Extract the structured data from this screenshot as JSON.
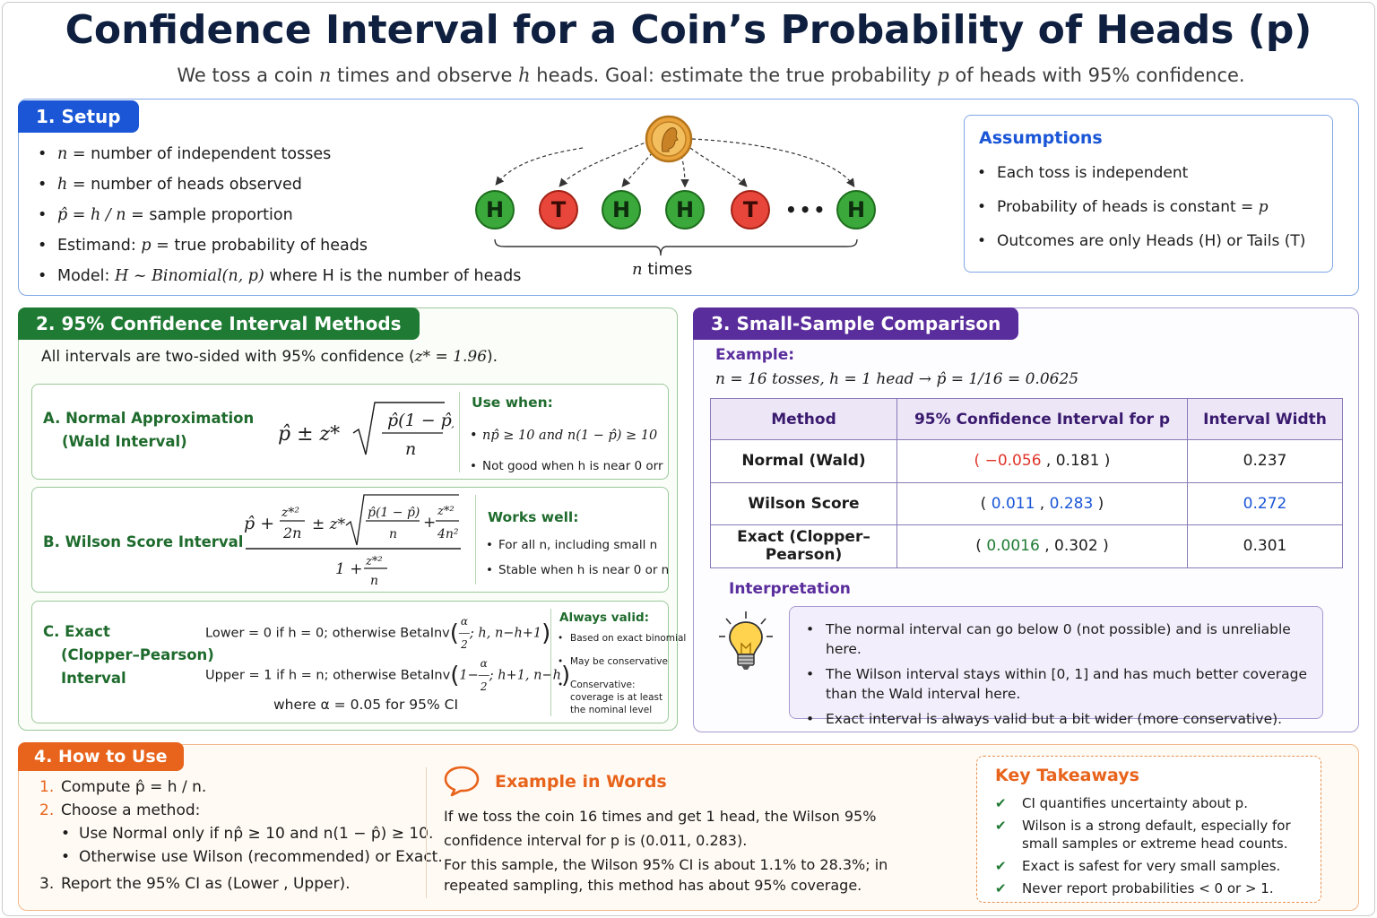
{
  "title": "Confidence Interval for a Coin’s Probability of Heads (p)",
  "subtitle": {
    "a": "We toss a coin ",
    "n": "n",
    "b": " times and observe ",
    "h": "h",
    "c": " heads. Goal: estimate the true probability ",
    "p": "p",
    "d": " of heads with 95% confidence."
  },
  "setup": {
    "tag": "1. Setup",
    "items": [
      {
        "sym": "n",
        "eq": " = ",
        "text": "number of independent tosses"
      },
      {
        "sym": "h",
        "eq": " = ",
        "text": "number of heads observed"
      },
      {
        "sym": "p̂",
        "eq": " = h / n = ",
        "text": "sample proportion"
      },
      {
        "pre": "Estimand:  ",
        "sym": "p",
        "eq": " = ",
        "text": "true probability of heads"
      },
      {
        "pre": "Model:  ",
        "math": "H ~ Binomial(n, p)",
        "text": " where H is the number of heads"
      }
    ],
    "tosses": [
      "H",
      "T",
      "H",
      "H",
      "T",
      "H"
    ],
    "dots": "• • •",
    "n_times": {
      "n": "n",
      "text": " times"
    }
  },
  "assumptions": {
    "title": "Assumptions",
    "items": [
      "Each toss is independent",
      "Probability of heads is constant = ",
      "Outcomes are only Heads (H) or Tails (T)"
    ],
    "p": "p"
  },
  "methods": {
    "tag": "2. 95% Confidence Interval Methods",
    "intro": "All intervals are two-sided with 95% confidence (",
    "intro_z": "z* = 1.96",
    "intro_end": ").",
    "A": {
      "name1": "A. Normal Approximation",
      "name2": "(Wald Interval)",
      "use_head": "Use when:",
      "use": [
        "np̂ ≥ 10 and n(1 − p̂) ≥ 10",
        "Not good when h is near 0 orr"
      ]
    },
    "B": {
      "name": "B. Wilson Score Interval",
      "use_head": "Works well:",
      "use": [
        "For all n, including small n",
        "Stable when h is near 0 or n"
      ]
    },
    "C": {
      "name1": "C. Exact",
      "name2": "(Clopper–Pearson)",
      "name3": "Interval",
      "lower": "Lower = 0 if h = 0; otherwise BetaInv",
      "lower_args": "; h, n−h+1",
      "upper": "Upper = 1 if h = n; otherwise BetaInv",
      "upper_args": "; h+1, n−h",
      "where": "where α = 0.05 for 95% CI",
      "use_head": "Always valid:",
      "use": [
        "Based on exact binomial",
        "May be conservative",
        "Conservative: coverage is at least the nominal level"
      ]
    }
  },
  "comparison": {
    "tag": "3. Small-Sample Comparison",
    "example_label": "Example:",
    "example": "n = 16 tosses,  h = 1 head    →   p̂ = 1/16 = 0.0625",
    "headers": [
      "Method",
      "95% Confidence Interval for p",
      "Interval Width"
    ],
    "rows": [
      {
        "method": "Normal (Wald)",
        "lo": "−0.056",
        "hi": "0.181",
        "width": "0.237"
      },
      {
        "method": "Wilson Score",
        "lo": "0.011",
        "hi": "0.283",
        "width": "0.272"
      },
      {
        "method": "Exact (Clopper–Pearson)",
        "lo": "0.0016",
        "hi": "0.302",
        "width": "0.301"
      }
    ],
    "interp_label": "Interpretation",
    "interp": [
      "The normal interval can go below 0 (not possible) and is unreliable here.",
      "The Wilson interval stays within [0, 1] and has much better coverage than the Wald interval here.",
      "Exact interval is always valid but a bit wider (more conservative)."
    ]
  },
  "howto": {
    "tag": "4. How to Use",
    "steps": [
      {
        "n": "1.",
        "text": "Compute  p̂ = h / n."
      },
      {
        "n": "2.",
        "text": "Choose a method:"
      },
      {
        "n": "3.",
        "text": "Report the 95% CI as (Lower , Upper)."
      }
    ],
    "sub": [
      "Use Normal only if np̂ ≥ 10 and n(1 − p̂) ≥ 10.",
      "Otherwise use Wilson (recommended) or Exact."
    ],
    "example_title": "Example in Words",
    "example_p1": "If we toss the coin 16 times and get 1 head, the Wilson 95% confidence interval for p is (0.011, 0.283).",
    "example_p2": "For this sample, the Wilson 95% CI is about 1.1% to 28.3%; in repeated sampling, this method has about 95% coverage.",
    "kt_title": "Key Takeaways",
    "kt": [
      "CI quantifies uncertainty about p.",
      "Wilson is a strong default, especially for small samples or extreme head counts.",
      "Exact is safest for very small samples.",
      "Never report probabilities < 0 or > 1."
    ]
  },
  "colors": {
    "blue": "#1a56d6",
    "green": "#1f7a33",
    "purple": "#5a2d9c",
    "orange": "#e8631b",
    "red": "#e0352a"
  }
}
